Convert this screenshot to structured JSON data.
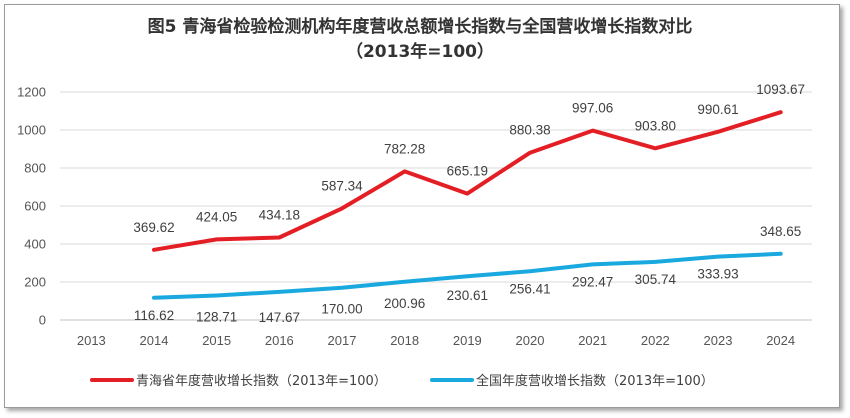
{
  "chart_data": {
    "type": "line",
    "title": "图5  青海省检验检测机构年度营收总额增长指数与全国营收增长指数对比",
    "subtitle": "（2013年=100）",
    "categories": [
      "2013",
      "2014",
      "2015",
      "2016",
      "2017",
      "2018",
      "2019",
      "2020",
      "2021",
      "2022",
      "2023",
      "2024"
    ],
    "ylim": [
      0,
      1200
    ],
    "yticks": [
      0,
      200,
      400,
      600,
      800,
      1000,
      1200
    ],
    "grid": true,
    "legend_position": "bottom",
    "series": [
      {
        "name": "青海省年度营收增长指数（2013年=100）",
        "color": "#e31e24",
        "values": [
          null,
          369.62,
          424.05,
          434.18,
          587.34,
          782.28,
          665.19,
          880.38,
          997.06,
          903.8,
          990.61,
          1093.67
        ],
        "labels": [
          "",
          "369.62",
          "424.05",
          "434.18",
          "587.34",
          "782.28",
          "665.19",
          "880.38",
          "997.06",
          "903.80",
          "990.61",
          "1093.67"
        ]
      },
      {
        "name": "全国年度营收增长指数（2013年=100）",
        "color": "#1aa9df",
        "values": [
          null,
          116.62,
          128.71,
          147.67,
          170.0,
          200.96,
          230.61,
          256.41,
          292.47,
          305.74,
          333.93,
          348.65
        ],
        "labels": [
          "",
          "116.62",
          "128.71",
          "147.67",
          "170.00",
          "200.96",
          "230.61",
          "256.41",
          "292.47",
          "305.74",
          "333.93",
          "348.65"
        ]
      }
    ]
  }
}
